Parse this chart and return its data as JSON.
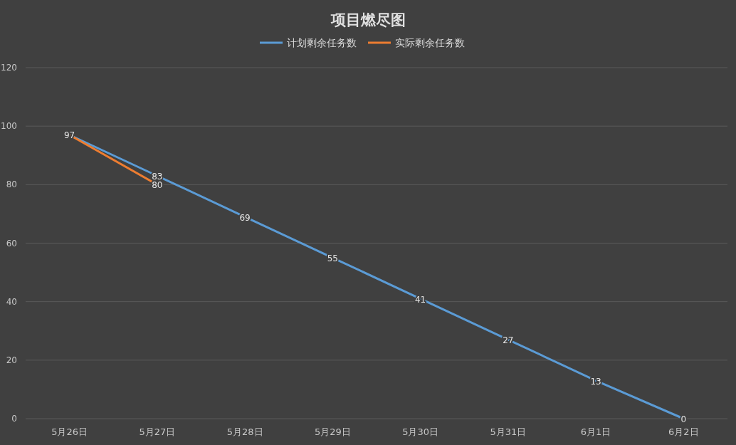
{
  "chart_data": {
    "type": "line",
    "title": "项目燃尽图",
    "categories": [
      "5月26日",
      "5月27日",
      "5月28日",
      "5月29日",
      "5月30日",
      "5月31日",
      "6月1日",
      "6月2日"
    ],
    "series": [
      {
        "name": "计划剩余任务数",
        "color": "#5b9bd5",
        "values": [
          97,
          83,
          69,
          55,
          41,
          27,
          13,
          0
        ],
        "value_labels": [
          "97",
          "83",
          "69",
          "55",
          "41",
          "27",
          "13",
          "0"
        ]
      },
      {
        "name": "实际剩余任务数",
        "color": "#ed7d31",
        "values": [
          97,
          80,
          null,
          null,
          null,
          null,
          null,
          null
        ],
        "value_labels": [
          null,
          "80",
          null,
          null,
          null,
          null,
          null,
          null
        ]
      }
    ],
    "ylim": [
      0,
      120
    ],
    "yticks": [
      0,
      20,
      40,
      60,
      80,
      100,
      120
    ],
    "grid": "y",
    "legend": "top"
  }
}
